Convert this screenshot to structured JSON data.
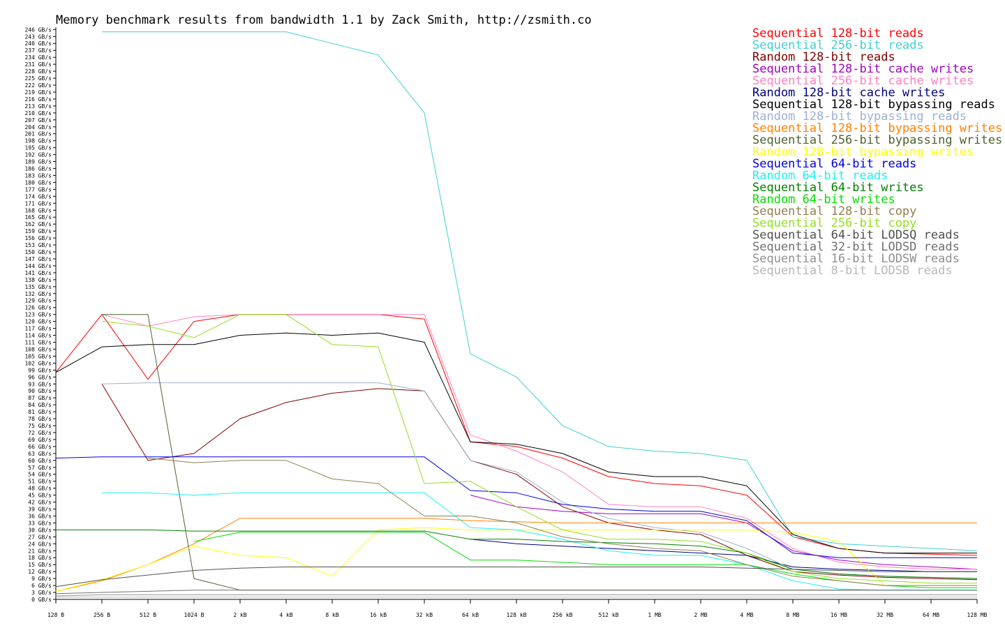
{
  "chart_data": {
    "type": "line",
    "title": "Memory benchmark results from bandwidth 1.1 by Zack Smith, http://zsmith.co",
    "xlabel": "",
    "ylabel": "",
    "x_scale": "log2",
    "x": [
      128,
      256,
      512,
      1024,
      2048,
      4096,
      8192,
      16384,
      32768,
      65536,
      131072,
      262144,
      524288,
      1048576,
      2097152,
      4194304,
      8388608,
      16777216,
      33554432,
      67108864,
      134217728
    ],
    "x_tick_labels": [
      "128 B",
      "256 B",
      "512 B",
      "1024 B",
      "2 kB",
      "4 kB",
      "8 kB",
      "16 kB",
      "32 kB",
      "64 kB",
      "128 kB",
      "256 kB",
      "512 kB",
      "1 MB",
      "2 MB",
      "4 MB",
      "8 MB",
      "16 MB",
      "32 MB",
      "64 MB",
      "128 MB"
    ],
    "ylim": [
      0,
      247
    ],
    "y_tick_step": 3,
    "y_tick_unit": "GB/s",
    "grid": false,
    "legend_position": "top-right",
    "series": [
      {
        "name": "Sequential 128-bit reads",
        "color": "#ff0000",
        "values": [
          98,
          123,
          95,
          120,
          123,
          123,
          123,
          123,
          121,
          68,
          66,
          61,
          53,
          50,
          49,
          45,
          27,
          22,
          20,
          19.5,
          19
        ]
      },
      {
        "name": "Sequential 256-bit reads",
        "color": "#40d0d0",
        "values": [
          null,
          245,
          245,
          245,
          245,
          245,
          240,
          235,
          210,
          106,
          96,
          75,
          66,
          64,
          63,
          60,
          27,
          24,
          23,
          22,
          21
        ]
      },
      {
        "name": "Random 128-bit reads",
        "color": "#800000",
        "values": [
          null,
          93,
          60,
          63,
          78,
          85,
          89,
          91,
          90,
          60,
          54,
          40,
          33,
          30,
          28,
          19,
          12,
          10.5,
          9.5,
          9,
          8.5
        ]
      },
      {
        "name": "Sequential 128-bit cache writes",
        "color": "#a000c0",
        "values": [
          null,
          null,
          null,
          null,
          null,
          null,
          null,
          null,
          null,
          45,
          40,
          38,
          37,
          37,
          37,
          33,
          21,
          17,
          15,
          14,
          13
        ]
      },
      {
        "name": "Sequential 256-bit cache writes",
        "color": "#ff80c0",
        "values": [
          null,
          123,
          118,
          122,
          123,
          123,
          123,
          123,
          123,
          71,
          64,
          55,
          41,
          40,
          40,
          35,
          22,
          16,
          14,
          13,
          13
        ]
      },
      {
        "name": "Random 128-bit cache writes",
        "color": "#000080",
        "values": [
          null,
          null,
          null,
          null,
          null,
          null,
          null,
          null,
          null,
          26,
          24,
          23,
          22,
          21,
          20,
          19,
          14,
          13,
          12.5,
          12,
          12
        ]
      },
      {
        "name": "Sequential 128-bit bypassing reads",
        "color": "#000000",
        "values": [
          98,
          109,
          110,
          110,
          114,
          115,
          114,
          115,
          111,
          68,
          67,
          63,
          55,
          53,
          53,
          49,
          28,
          22,
          20,
          20,
          20
        ]
      },
      {
        "name": "Random 128-bit bypassing reads",
        "color": "#a0b0d0",
        "values": [
          null,
          93,
          93.5,
          93.5,
          93.5,
          93.5,
          93.5,
          93.5,
          90,
          60,
          55,
          42,
          35,
          31,
          29,
          22,
          13,
          11,
          10,
          9.5,
          9
        ]
      },
      {
        "name": "Sequential 128-bit bypassing writes",
        "color": "#ff8000",
        "values": [
          3.5,
          8,
          15,
          24,
          35,
          35,
          35,
          35,
          35,
          34,
          33.5,
          33,
          33,
          33,
          33,
          33,
          33,
          33,
          33,
          33,
          33
        ]
      },
      {
        "name": "Sequential 256-bit bypassing writes",
        "color": "#506030",
        "values": [
          null,
          123,
          123,
          9,
          4,
          4,
          4,
          4,
          4,
          4,
          4,
          4,
          4,
          4,
          4,
          4,
          4,
          4,
          4,
          4,
          4
        ]
      },
      {
        "name": "Random 128-bit bypassing writes",
        "color": "#ffff00",
        "values": [
          3.5,
          8.5,
          15,
          23,
          19,
          18,
          10,
          30,
          31,
          30,
          30,
          30,
          30,
          30,
          30,
          30,
          29,
          25,
          6,
          6,
          6
        ]
      },
      {
        "name": "Sequential 64-bit reads",
        "color": "#0000e0",
        "values": [
          61,
          61.5,
          61.5,
          61.5,
          61.5,
          61.5,
          61.5,
          61.5,
          61.5,
          47,
          46,
          41,
          39,
          38,
          38,
          34,
          20,
          18,
          18,
          18,
          18
        ]
      },
      {
        "name": "Random 64-bit reads",
        "color": "#20f0f0",
        "values": [
          null,
          46,
          46,
          45,
          46,
          46,
          46,
          46,
          46,
          31,
          30,
          26,
          21,
          19,
          19,
          15,
          8,
          4.5,
          4,
          4,
          4
        ]
      },
      {
        "name": "Sequential 64-bit writes",
        "color": "#008000",
        "values": [
          30,
          30,
          30,
          29.5,
          29.5,
          29.5,
          29.5,
          29.5,
          29.5,
          26,
          26,
          25,
          24.5,
          24,
          23,
          20,
          13,
          11,
          10,
          9.5,
          9
        ]
      },
      {
        "name": "Random 64-bit writes",
        "color": "#00e000",
        "values": [
          null,
          null,
          null,
          25,
          29,
          29,
          29,
          29,
          29,
          17,
          17,
          16,
          15,
          15,
          15,
          15,
          11,
          8,
          6,
          5,
          5
        ]
      },
      {
        "name": "Sequential 128-bit copy",
        "color": "#908050",
        "values": [
          null,
          null,
          61,
          59,
          60,
          60,
          52,
          50,
          36,
          36,
          33,
          27,
          24,
          22,
          21,
          15,
          10,
          8,
          6,
          6,
          6
        ]
      },
      {
        "name": "Sequential 256-bit copy",
        "color": "#90e020",
        "values": [
          null,
          120,
          118,
          113,
          123,
          123,
          110,
          109,
          50,
          51,
          40,
          30,
          26,
          26,
          25,
          20,
          12,
          9,
          8,
          7,
          7
        ]
      },
      {
        "name": "Sequential 64-bit LODSQ reads",
        "color": "#505050",
        "values": [
          5.5,
          8.5,
          10.5,
          12.5,
          13.5,
          14,
          14,
          14,
          14,
          14,
          14,
          14,
          14,
          14,
          14,
          13.5,
          13,
          12.5,
          12,
          12,
          12
        ]
      },
      {
        "name": "Sequential 32-bit LODSD reads",
        "color": "#707070",
        "values": [
          2.5,
          3,
          3.5,
          4,
          4,
          4,
          4,
          4,
          4,
          4,
          4,
          4,
          4,
          4,
          4,
          4,
          4,
          4,
          4,
          4,
          4
        ]
      },
      {
        "name": "Sequential 16-bit LODSW reads",
        "color": "#909090",
        "values": [
          1.5,
          2,
          2,
          2,
          2,
          2,
          2,
          2,
          2,
          2,
          2,
          2,
          2,
          2,
          2,
          2,
          2,
          2,
          2,
          2,
          2
        ]
      },
      {
        "name": "Sequential 8-bit LODSB reads",
        "color": "#b8b8b8",
        "values": [
          1,
          1,
          1,
          1,
          1,
          1,
          1,
          1,
          1,
          1,
          1,
          1,
          1,
          1,
          1,
          1,
          1,
          1,
          1,
          1,
          1
        ]
      }
    ]
  }
}
